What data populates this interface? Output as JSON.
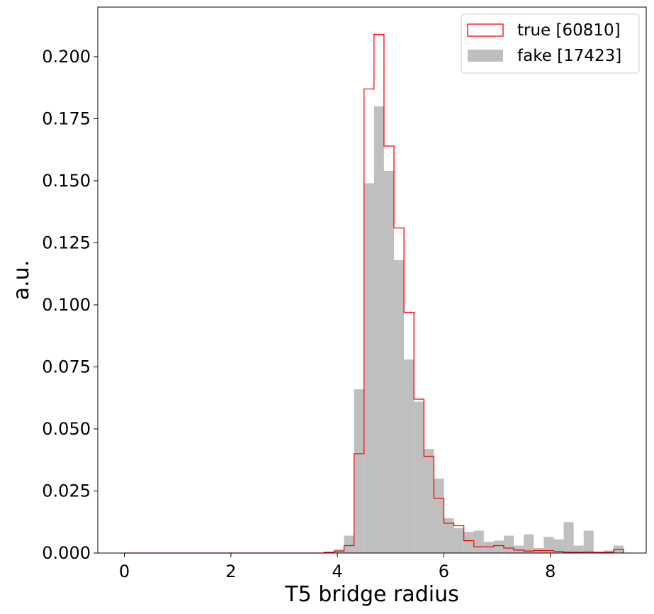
{
  "chart_data": {
    "type": "histogram",
    "title": "",
    "xlabel": "T5 bridge radius",
    "ylabel": "a.u.",
    "xlim": [
      -0.5,
      9.8
    ],
    "ylim": [
      0,
      0.22
    ],
    "xticks": [
      "0",
      "2",
      "4",
      "6",
      "8"
    ],
    "xtick_values": [
      0,
      2,
      4,
      6,
      8
    ],
    "yticks": [
      "0.000",
      "0.025",
      "0.050",
      "0.075",
      "0.100",
      "0.125",
      "0.150",
      "0.175",
      "0.200"
    ],
    "ytick_values": [
      0,
      0.025,
      0.05,
      0.075,
      0.1,
      0.125,
      0.15,
      0.175,
      0.2
    ],
    "bin_start": 0,
    "bin_width": 0.1875,
    "legend_position": "top-right",
    "series": [
      {
        "name": "true [60810]",
        "style": "step",
        "color": "#ff0000",
        "values": [
          0,
          0,
          0,
          0,
          0,
          0,
          0,
          0,
          0,
          0,
          0,
          0,
          0,
          0,
          0,
          0,
          0,
          0,
          0,
          0,
          0.0003,
          0.0008,
          0.003,
          0.04,
          0.187,
          0.209,
          0.164,
          0.131,
          0.097,
          0.062,
          0.039,
          0.022,
          0.012,
          0.011,
          0.005,
          0.0025,
          0.0025,
          0.003,
          0.002,
          0.0012,
          0.0008,
          0.001,
          0.001,
          0.0006,
          0.0003,
          0.0003,
          0.0004,
          0.0003,
          0.0003,
          0.0015
        ]
      },
      {
        "name": "fake [17423]",
        "style": "filled",
        "color": "#bfbfbf",
        "values": [
          0,
          0,
          0,
          0,
          0,
          0,
          0,
          0,
          0,
          0,
          0,
          0,
          0,
          0,
          0,
          0,
          0,
          0,
          0,
          0,
          0,
          0.0015,
          0.007,
          0.066,
          0.149,
          0.18,
          0.154,
          0.118,
          0.078,
          0.061,
          0.042,
          0.03,
          0.014,
          0.01,
          0.0085,
          0.009,
          0.0045,
          0.005,
          0.007,
          0.003,
          0.0075,
          0.002,
          0.0065,
          0.0055,
          0.0125,
          0.003,
          0.009,
          0,
          0.001,
          0.003
        ]
      }
    ]
  }
}
